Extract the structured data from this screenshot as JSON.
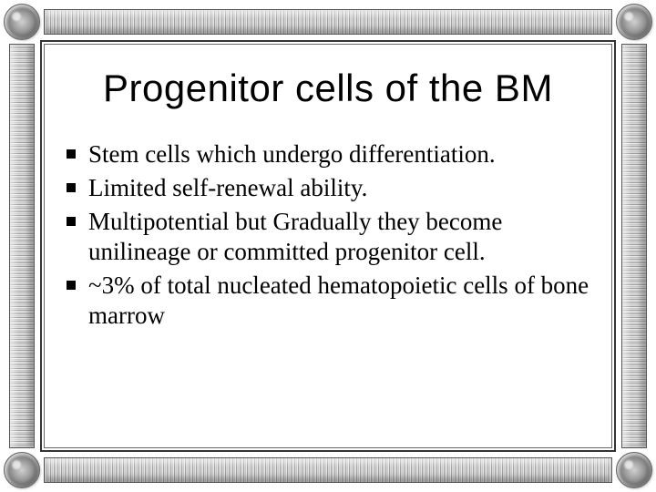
{
  "slide": {
    "title": "Progenitor cells of the BM",
    "bullets": [
      "Stem cells which undergo differentiation.",
      "Limited self-renewal ability.",
      "Multipotential but Gradually they become unilineage or committed progenitor cell.",
      "~3% of total nucleated hematopoietic cells of bone marrow"
    ],
    "title_fontsize": 42,
    "title_font": "Arial",
    "body_fontsize": 27,
    "body_font": "Georgia",
    "text_color": "#000000",
    "background_color": "#ffffff",
    "bullet_marker": "square",
    "frame": {
      "corner_style": "metallic-sphere",
      "rail_style": "ribbed-metal",
      "rail_colors": [
        "#c8c8c8",
        "#e8e8e8",
        "#a0a0a0"
      ],
      "inner_border_color": "#333333"
    }
  }
}
